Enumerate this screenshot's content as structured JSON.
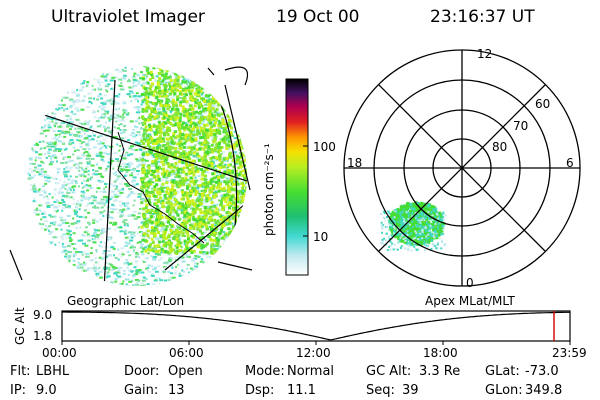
{
  "header": {
    "title": "Ultraviolet Imager",
    "date": "19 Oct 00",
    "time": "23:16:37 UT"
  },
  "geo_panel": {
    "caption": "Geographic Lat/Lon"
  },
  "polar_panel": {
    "caption": "Apex MLat/MLT",
    "mlt_labels": {
      "top": "12",
      "left": "18",
      "right": "6",
      "bottom": "0"
    },
    "lat_labels": [
      "60",
      "70",
      "80"
    ]
  },
  "colorbar": {
    "label": "photon cm⁻²s⁻¹",
    "ticks": [
      "100",
      "10"
    ]
  },
  "altitude_plot": {
    "ylabel": "GC Alt",
    "ytick_top": "9.0",
    "ytick_bottom": "1.8",
    "xticks": [
      "00:00",
      "06:00",
      "12:00",
      "18:00",
      "23:59"
    ],
    "marker_color": "#cc0000"
  },
  "info": [
    {
      "label": "Flt:",
      "value": "LBHL"
    },
    {
      "label": "Door:",
      "value": "Open"
    },
    {
      "label": "Mode:",
      "value": "Normal"
    },
    {
      "label": "GC Alt:",
      "value": "3.3 Re"
    },
    {
      "label": "GLat:",
      "value": "-73.0"
    },
    {
      "label": "IP:",
      "value": "9.0"
    },
    {
      "label": "Gain:",
      "value": "13"
    },
    {
      "label": "Dsp:",
      "value": "11.1"
    },
    {
      "label": "Seq:",
      "value": "39"
    },
    {
      "label": "GLon:",
      "value": "349.8"
    }
  ]
}
